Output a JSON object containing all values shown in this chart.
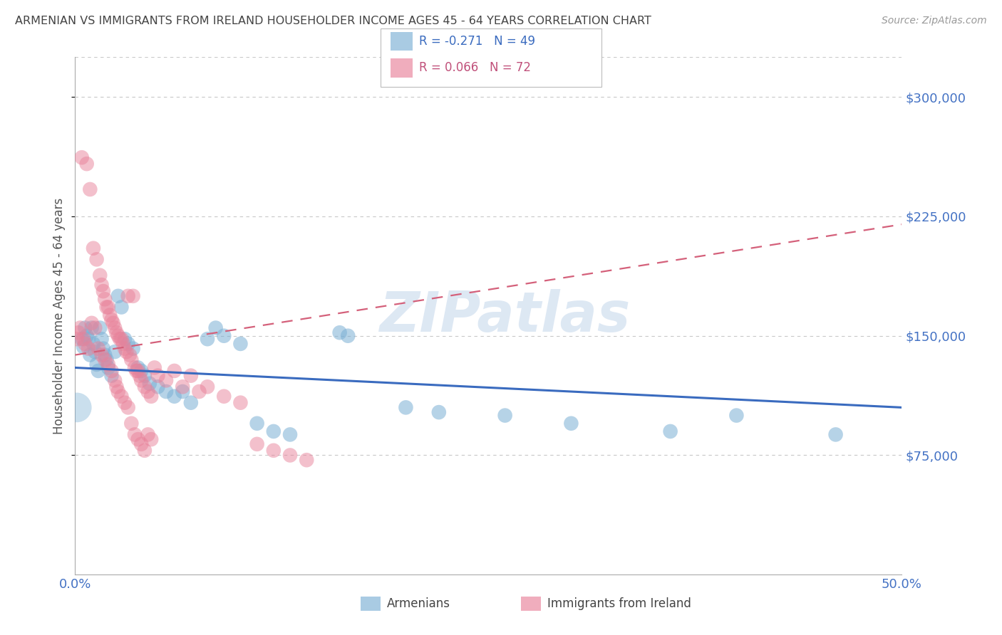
{
  "title": "ARMENIAN VS IMMIGRANTS FROM IRELAND HOUSEHOLDER INCOME AGES 45 - 64 YEARS CORRELATION CHART",
  "source": "Source: ZipAtlas.com",
  "ylabel": "Householder Income Ages 45 - 64 years",
  "ytick_values": [
    75000,
    150000,
    225000,
    300000
  ],
  "ymin": 0,
  "ymax": 325000,
  "xmin": 0.0,
  "xmax": 0.5,
  "blue_color": "#7bafd4",
  "pink_color": "#e8829a",
  "axis_label_color": "#4472c4",
  "grid_color": "#c8c8c8",
  "armenian_points": [
    [
      0.004,
      148000
    ],
    [
      0.005,
      143000
    ],
    [
      0.006,
      155000
    ],
    [
      0.007,
      150000
    ],
    [
      0.008,
      148000
    ],
    [
      0.009,
      138000
    ],
    [
      0.01,
      155000
    ],
    [
      0.011,
      145000
    ],
    [
      0.012,
      140000
    ],
    [
      0.013,
      132000
    ],
    [
      0.014,
      128000
    ],
    [
      0.015,
      155000
    ],
    [
      0.016,
      148000
    ],
    [
      0.017,
      142000
    ],
    [
      0.018,
      138000
    ],
    [
      0.019,
      135000
    ],
    [
      0.02,
      130000
    ],
    [
      0.022,
      125000
    ],
    [
      0.024,
      140000
    ],
    [
      0.026,
      175000
    ],
    [
      0.028,
      168000
    ],
    [
      0.03,
      148000
    ],
    [
      0.032,
      145000
    ],
    [
      0.035,
      142000
    ],
    [
      0.038,
      130000
    ],
    [
      0.04,
      128000
    ],
    [
      0.042,
      125000
    ],
    [
      0.045,
      120000
    ],
    [
      0.05,
      118000
    ],
    [
      0.055,
      115000
    ],
    [
      0.06,
      112000
    ],
    [
      0.065,
      115000
    ],
    [
      0.07,
      108000
    ],
    [
      0.08,
      148000
    ],
    [
      0.085,
      155000
    ],
    [
      0.09,
      150000
    ],
    [
      0.1,
      145000
    ],
    [
      0.11,
      95000
    ],
    [
      0.12,
      90000
    ],
    [
      0.13,
      88000
    ],
    [
      0.16,
      152000
    ],
    [
      0.165,
      150000
    ],
    [
      0.2,
      105000
    ],
    [
      0.22,
      102000
    ],
    [
      0.26,
      100000
    ],
    [
      0.3,
      95000
    ],
    [
      0.36,
      90000
    ],
    [
      0.4,
      100000
    ],
    [
      0.46,
      88000
    ]
  ],
  "ireland_points": [
    [
      0.004,
      262000
    ],
    [
      0.007,
      258000
    ],
    [
      0.009,
      242000
    ],
    [
      0.011,
      205000
    ],
    [
      0.013,
      198000
    ],
    [
      0.015,
      188000
    ],
    [
      0.016,
      182000
    ],
    [
      0.017,
      178000
    ],
    [
      0.018,
      173000
    ],
    [
      0.019,
      168000
    ],
    [
      0.02,
      168000
    ],
    [
      0.021,
      163000
    ],
    [
      0.022,
      160000
    ],
    [
      0.023,
      158000
    ],
    [
      0.024,
      155000
    ],
    [
      0.025,
      152000
    ],
    [
      0.026,
      150000
    ],
    [
      0.027,
      148000
    ],
    [
      0.028,
      148000
    ],
    [
      0.029,
      145000
    ],
    [
      0.03,
      142000
    ],
    [
      0.031,
      140000
    ],
    [
      0.032,
      175000
    ],
    [
      0.033,
      138000
    ],
    [
      0.034,
      135000
    ],
    [
      0.035,
      175000
    ],
    [
      0.036,
      130000
    ],
    [
      0.037,
      128000
    ],
    [
      0.038,
      128000
    ],
    [
      0.039,
      125000
    ],
    [
      0.003,
      155000
    ],
    [
      0.005,
      148000
    ],
    [
      0.002,
      152000
    ],
    [
      0.001,
      148000
    ],
    [
      0.006,
      145000
    ],
    [
      0.008,
      142000
    ],
    [
      0.01,
      158000
    ],
    [
      0.012,
      155000
    ],
    [
      0.04,
      122000
    ],
    [
      0.042,
      118000
    ],
    [
      0.044,
      115000
    ],
    [
      0.046,
      112000
    ],
    [
      0.048,
      130000
    ],
    [
      0.05,
      125000
    ],
    [
      0.055,
      122000
    ],
    [
      0.06,
      128000
    ],
    [
      0.065,
      118000
    ],
    [
      0.07,
      125000
    ],
    [
      0.075,
      115000
    ],
    [
      0.08,
      118000
    ],
    [
      0.09,
      112000
    ],
    [
      0.1,
      108000
    ],
    [
      0.014,
      142000
    ],
    [
      0.016,
      138000
    ],
    [
      0.018,
      135000
    ],
    [
      0.02,
      132000
    ],
    [
      0.022,
      128000
    ],
    [
      0.024,
      122000
    ],
    [
      0.025,
      118000
    ],
    [
      0.026,
      115000
    ],
    [
      0.028,
      112000
    ],
    [
      0.03,
      108000
    ],
    [
      0.032,
      105000
    ],
    [
      0.034,
      95000
    ],
    [
      0.036,
      88000
    ],
    [
      0.038,
      85000
    ],
    [
      0.04,
      82000
    ],
    [
      0.042,
      78000
    ],
    [
      0.044,
      88000
    ],
    [
      0.046,
      85000
    ],
    [
      0.11,
      82000
    ],
    [
      0.12,
      78000
    ],
    [
      0.13,
      75000
    ],
    [
      0.14,
      72000
    ]
  ]
}
